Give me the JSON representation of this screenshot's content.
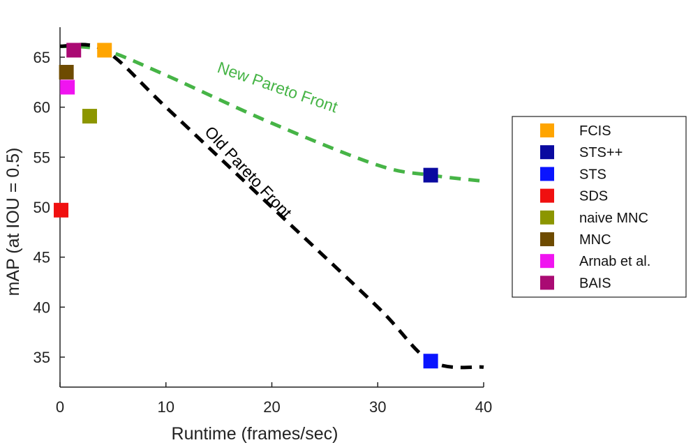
{
  "chart_data": {
    "type": "scatter",
    "xlabel": "Runtime (frames/sec)",
    "ylabel": "mAP (at IOU = 0.5)",
    "xlim": [
      0,
      40
    ],
    "ylim": [
      32,
      68
    ],
    "xticks": [
      0,
      10,
      20,
      30,
      40
    ],
    "yticks": [
      35,
      40,
      45,
      50,
      55,
      60,
      65
    ],
    "grid": false,
    "legend_position": "right",
    "series": [
      {
        "name": "FCIS",
        "color": "#ffa500",
        "x": 4.2,
        "y": 65.7
      },
      {
        "name": "STS++",
        "color": "#0a0aa0",
        "x": 35.0,
        "y": 53.2
      },
      {
        "name": "STS",
        "color": "#0a14ff",
        "x": 35.0,
        "y": 34.6
      },
      {
        "name": "SDS",
        "color": "#f01010",
        "x": 0.1,
        "y": 49.7
      },
      {
        "name": "naive MNC",
        "color": "#8c9600",
        "x": 2.8,
        "y": 59.1
      },
      {
        "name": "MNC",
        "color": "#6e4b00",
        "x": 0.6,
        "y": 63.5
      },
      {
        "name": "Arnab et al.",
        "color": "#f014f0",
        "x": 0.7,
        "y": 62.0
      },
      {
        "name": "BAIS",
        "color": "#aa0a73",
        "x": 1.3,
        "y": 65.7
      }
    ],
    "fronts": [
      {
        "label": "New Pareto Front",
        "color": "#46b446",
        "x": [
          0,
          4.2,
          10,
          20,
          30,
          35,
          40
        ],
        "y": [
          66.1,
          65.7,
          63.2,
          58.4,
          54.2,
          53.2,
          52.6
        ]
      },
      {
        "label": "Old Pareto Front",
        "color": "#000000",
        "x": [
          0,
          4.2,
          10,
          20,
          30,
          35,
          40
        ],
        "y": [
          66.1,
          65.7,
          60.0,
          50.0,
          40.0,
          34.6,
          34.0
        ]
      }
    ]
  }
}
